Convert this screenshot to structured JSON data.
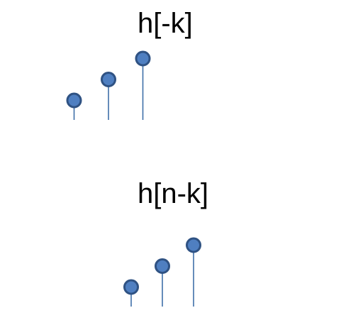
{
  "colors": {
    "axis": "#000000",
    "stem": "#3f6fa8",
    "marker_fill": "#4f7fc1",
    "marker_stroke": "#2f5283"
  },
  "plots": [
    {
      "label": "h[-k]",
      "samples": [
        {
          "k": -1,
          "value": 1
        },
        {
          "k": 0,
          "value": 2
        },
        {
          "k": 1,
          "value": 3
        }
      ]
    },
    {
      "label": "h[n-k]",
      "samples": [
        {
          "k": 2,
          "value": 1
        },
        {
          "k": 3,
          "value": 2
        },
        {
          "k": 4,
          "value": 3
        }
      ]
    }
  ]
}
